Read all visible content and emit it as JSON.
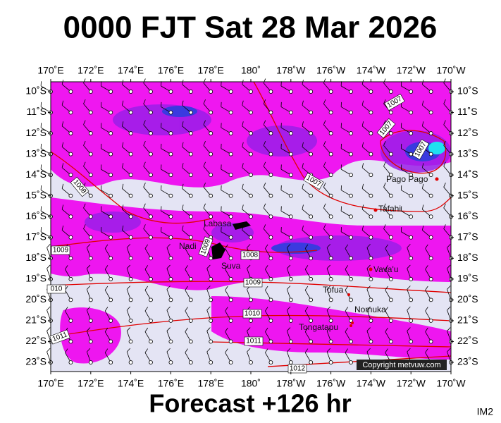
{
  "header": {
    "title": "0000 FJT Sat 28 Mar 2026"
  },
  "map": {
    "lon_labels": [
      "170˚E",
      "172˚E",
      "174˚E",
      "176˚E",
      "178˚E",
      "180˚",
      "178˚W",
      "176˚W",
      "174˚W",
      "172˚W",
      "170˚W"
    ],
    "lat_labels": [
      "10˚S",
      "11˚S",
      "12˚S",
      "13˚S",
      "14˚S",
      "15˚S",
      "16˚S",
      "17˚S",
      "18˚S",
      "19˚S",
      "20˚S",
      "21˚S",
      "22˚S",
      "23˚S"
    ],
    "places": [
      "Labasa",
      "Nadi",
      "Suva",
      "Pago Pago",
      "Tafahi",
      "Vava'u",
      "Tofua",
      "Nomuka",
      "Tongatapu"
    ],
    "isobar_labels": [
      "1007",
      "1007",
      "1007",
      "1007",
      "1008",
      "1009",
      "1009",
      "1008",
      "1009",
      "010",
      "1010",
      "1011",
      "1011",
      "1012"
    ],
    "copyright": "Copyright metvuw.com"
  },
  "footer": {
    "forecast": "Forecast +126 hr",
    "id": "IM2"
  }
}
